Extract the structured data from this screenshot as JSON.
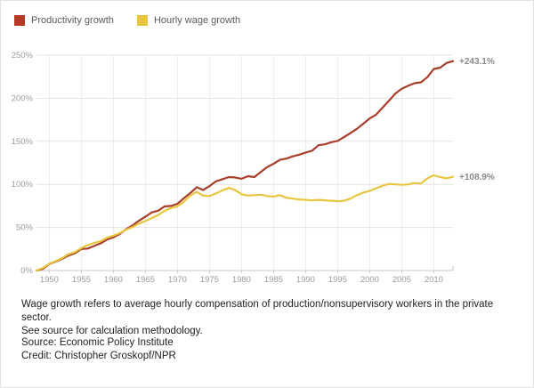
{
  "legend": {
    "items": [
      {
        "label": "Productivity growth",
        "color": "#b43a26"
      },
      {
        "label": "Hourly wage growth",
        "color": "#e9c63e"
      }
    ]
  },
  "chart_data": {
    "type": "line",
    "title": "",
    "xlabel": "",
    "ylabel": "",
    "xlim": [
      1948,
      2013
    ],
    "ylim": [
      0,
      250
    ],
    "grid": true,
    "legend_position": "top-left",
    "x_tick_values": [
      1950,
      1955,
      1960,
      1965,
      1970,
      1975,
      1980,
      1985,
      1990,
      1995,
      2000,
      2005,
      2010
    ],
    "x_tick_labels": [
      "1950",
      "1955",
      "1960",
      "1965",
      "1970",
      "1975",
      "1980",
      "1985",
      "1990",
      "1995",
      "2000",
      "2005",
      "2010"
    ],
    "y_tick_values": [
      0,
      50,
      100,
      150,
      200,
      250
    ],
    "y_tick_labels": [
      "0%",
      "50%",
      "100%",
      "150%",
      "200%",
      "250%"
    ],
    "x": [
      1948,
      1949,
      1950,
      1951,
      1952,
      1953,
      1954,
      1955,
      1956,
      1957,
      1958,
      1959,
      1960,
      1961,
      1962,
      1963,
      1964,
      1965,
      1966,
      1967,
      1968,
      1969,
      1970,
      1971,
      1972,
      1973,
      1974,
      1975,
      1976,
      1977,
      1978,
      1979,
      1980,
      1981,
      1982,
      1983,
      1984,
      1985,
      1986,
      1987,
      1988,
      1989,
      1990,
      1991,
      1992,
      1993,
      1994,
      1995,
      1996,
      1997,
      1998,
      1999,
      2000,
      2001,
      2002,
      2003,
      2004,
      2005,
      2006,
      2007,
      2008,
      2009,
      2010,
      2011,
      2012,
      2013
    ],
    "series": [
      {
        "name": "Productivity growth",
        "color": "#a93e2b",
        "end_label": "+243.1%",
        "values": [
          0.0,
          2.0,
          7.5,
          10.5,
          13.5,
          17.5,
          20.0,
          25.0,
          25.5,
          28.5,
          31.5,
          36.0,
          38.5,
          42.5,
          48.0,
          52.5,
          58.0,
          62.5,
          67.5,
          69.5,
          74.5,
          75.0,
          77.5,
          84.0,
          90.0,
          96.7,
          93.5,
          98.0,
          103.5,
          106.0,
          108.5,
          108.1,
          106.5,
          109.5,
          108.5,
          114.5,
          120.0,
          124.0,
          128.5,
          130.0,
          132.5,
          134.5,
          137.0,
          139.0,
          145.5,
          146.5,
          149.0,
          150.5,
          155.0,
          159.5,
          164.5,
          170.5,
          176.5,
          181.0,
          189.0,
          197.0,
          205.5,
          211.0,
          214.5,
          217.5,
          218.5,
          224.5,
          234.0,
          235.5,
          241.0,
          243.1
        ]
      },
      {
        "name": "Hourly wage growth",
        "color": "#e8c63f",
        "end_label": "+108.9%",
        "values": [
          0.0,
          3.0,
          8.0,
          11.0,
          14.5,
          19.0,
          21.5,
          26.0,
          29.5,
          32.0,
          34.0,
          38.0,
          40.5,
          43.5,
          47.5,
          50.5,
          54.5,
          57.5,
          61.0,
          64.5,
          69.5,
          72.5,
          74.5,
          80.0,
          87.0,
          91.3,
          87.0,
          86.5,
          89.5,
          93.0,
          96.0,
          93.4,
          88.5,
          87.0,
          87.5,
          88.0,
          86.5,
          86.0,
          87.5,
          84.5,
          83.5,
          82.5,
          82.0,
          81.5,
          82.0,
          81.5,
          81.0,
          80.5,
          81.0,
          83.5,
          87.5,
          90.5,
          92.5,
          95.5,
          98.5,
          100.5,
          100.0,
          99.5,
          100.0,
          101.5,
          101.0,
          107.0,
          110.5,
          108.5,
          107.0,
          108.9
        ]
      }
    ],
    "style": {
      "h_grid_color": "#e3e3e3",
      "v_grid_color": "#ededed",
      "axis_color": "#c8c8c8",
      "tick_label_color": "#9b9b9b",
      "end_label_color": "#8a8a8a"
    }
  },
  "caption": {
    "line1": "Wage growth refers to average hourly compensation of production/nonsupervisory workers in the private sector.",
    "line2": "See source for calculation methodology."
  },
  "source": "Source: Economic Policy Institute",
  "credit": "Credit: Christopher Groskopf/NPR"
}
